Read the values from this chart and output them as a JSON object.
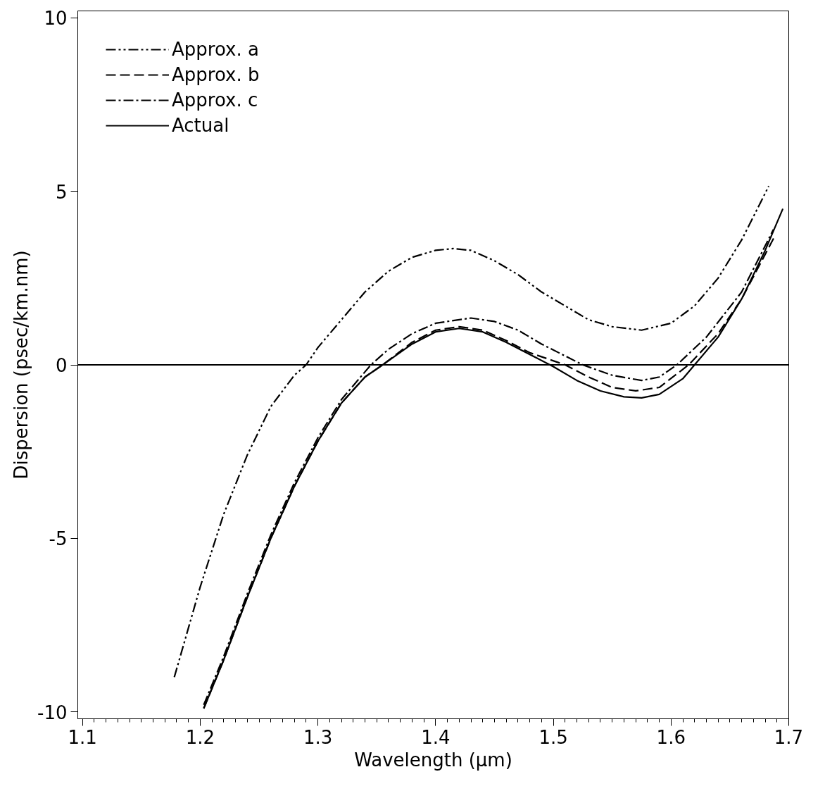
{
  "chart_data": {
    "type": "line",
    "xlabel": "Wavelength (μm)",
    "ylabel": "Dispersion (psec/km.nm)",
    "xlim": [
      1.096,
      1.7
    ],
    "ylim": [
      -10.2,
      10.2
    ],
    "xticks": [
      1.1,
      1.2,
      1.3,
      1.4,
      1.5,
      1.6,
      1.7
    ],
    "yticks": [
      -10,
      -5,
      0,
      5,
      10
    ],
    "grid": false,
    "legend": "top left",
    "marker": "none",
    "ref_lines": [
      {
        "axis": "y",
        "value": 0,
        "color": "#000000",
        "line_style": "solid"
      }
    ],
    "series": [
      {
        "name": "Approx. a",
        "color": "#000000",
        "line_style": "dashdotdot",
        "x": [
          1.178,
          1.2,
          1.22,
          1.24,
          1.26,
          1.28,
          1.29,
          1.3,
          1.32,
          1.34,
          1.36,
          1.38,
          1.4,
          1.415,
          1.43,
          1.45,
          1.47,
          1.49,
          1.51,
          1.53,
          1.55,
          1.575,
          1.6,
          1.62,
          1.64,
          1.66,
          1.683
        ],
        "values": [
          -9.0,
          -6.4,
          -4.3,
          -2.6,
          -1.2,
          -0.3,
          0.0,
          0.5,
          1.3,
          2.1,
          2.7,
          3.1,
          3.3,
          3.35,
          3.3,
          3.0,
          2.6,
          2.1,
          1.7,
          1.3,
          1.1,
          1.0,
          1.2,
          1.7,
          2.5,
          3.6,
          5.15
        ]
      },
      {
        "name": "Approx. b",
        "color": "#000000",
        "line_style": "dashed",
        "x": [
          1.203,
          1.22,
          1.24,
          1.26,
          1.28,
          1.3,
          1.32,
          1.34,
          1.355,
          1.38,
          1.4,
          1.42,
          1.44,
          1.46,
          1.48,
          1.51,
          1.53,
          1.55,
          1.57,
          1.59,
          1.615,
          1.64,
          1.66,
          1.688
        ],
        "values": [
          -9.9,
          -8.5,
          -6.7,
          -5.0,
          -3.5,
          -2.2,
          -1.1,
          -0.35,
          0.0,
          0.65,
          1.0,
          1.1,
          1.0,
          0.7,
          0.35,
          0.0,
          -0.35,
          -0.65,
          -0.75,
          -0.65,
          0.0,
          0.9,
          1.9,
          3.7
        ]
      },
      {
        "name": "Approx. c",
        "color": "#000000",
        "line_style": "dashdot",
        "x": [
          1.203,
          1.22,
          1.24,
          1.26,
          1.28,
          1.3,
          1.32,
          1.345,
          1.36,
          1.38,
          1.4,
          1.43,
          1.45,
          1.47,
          1.49,
          1.525,
          1.55,
          1.575,
          1.59,
          1.605,
          1.63,
          1.66,
          1.687
        ],
        "values": [
          -9.8,
          -8.4,
          -6.6,
          -4.9,
          -3.4,
          -2.1,
          -1.0,
          0.0,
          0.45,
          0.9,
          1.2,
          1.35,
          1.25,
          1.0,
          0.6,
          0.0,
          -0.3,
          -0.45,
          -0.35,
          0.0,
          0.8,
          2.1,
          3.9
        ]
      },
      {
        "name": "Actual",
        "color": "#000000",
        "line_style": "solid",
        "x": [
          1.203,
          1.22,
          1.24,
          1.26,
          1.28,
          1.3,
          1.32,
          1.34,
          1.355,
          1.38,
          1.4,
          1.42,
          1.44,
          1.46,
          1.48,
          1.5,
          1.52,
          1.54,
          1.56,
          1.575,
          1.59,
          1.61,
          1.62,
          1.64,
          1.66,
          1.68,
          1.695
        ],
        "values": [
          -9.9,
          -8.5,
          -6.7,
          -5.0,
          -3.5,
          -2.2,
          -1.1,
          -0.35,
          0.0,
          0.6,
          0.95,
          1.05,
          0.95,
          0.65,
          0.3,
          -0.05,
          -0.45,
          -0.75,
          -0.92,
          -0.95,
          -0.85,
          -0.4,
          0.0,
          0.8,
          1.9,
          3.3,
          4.5
        ]
      }
    ]
  }
}
